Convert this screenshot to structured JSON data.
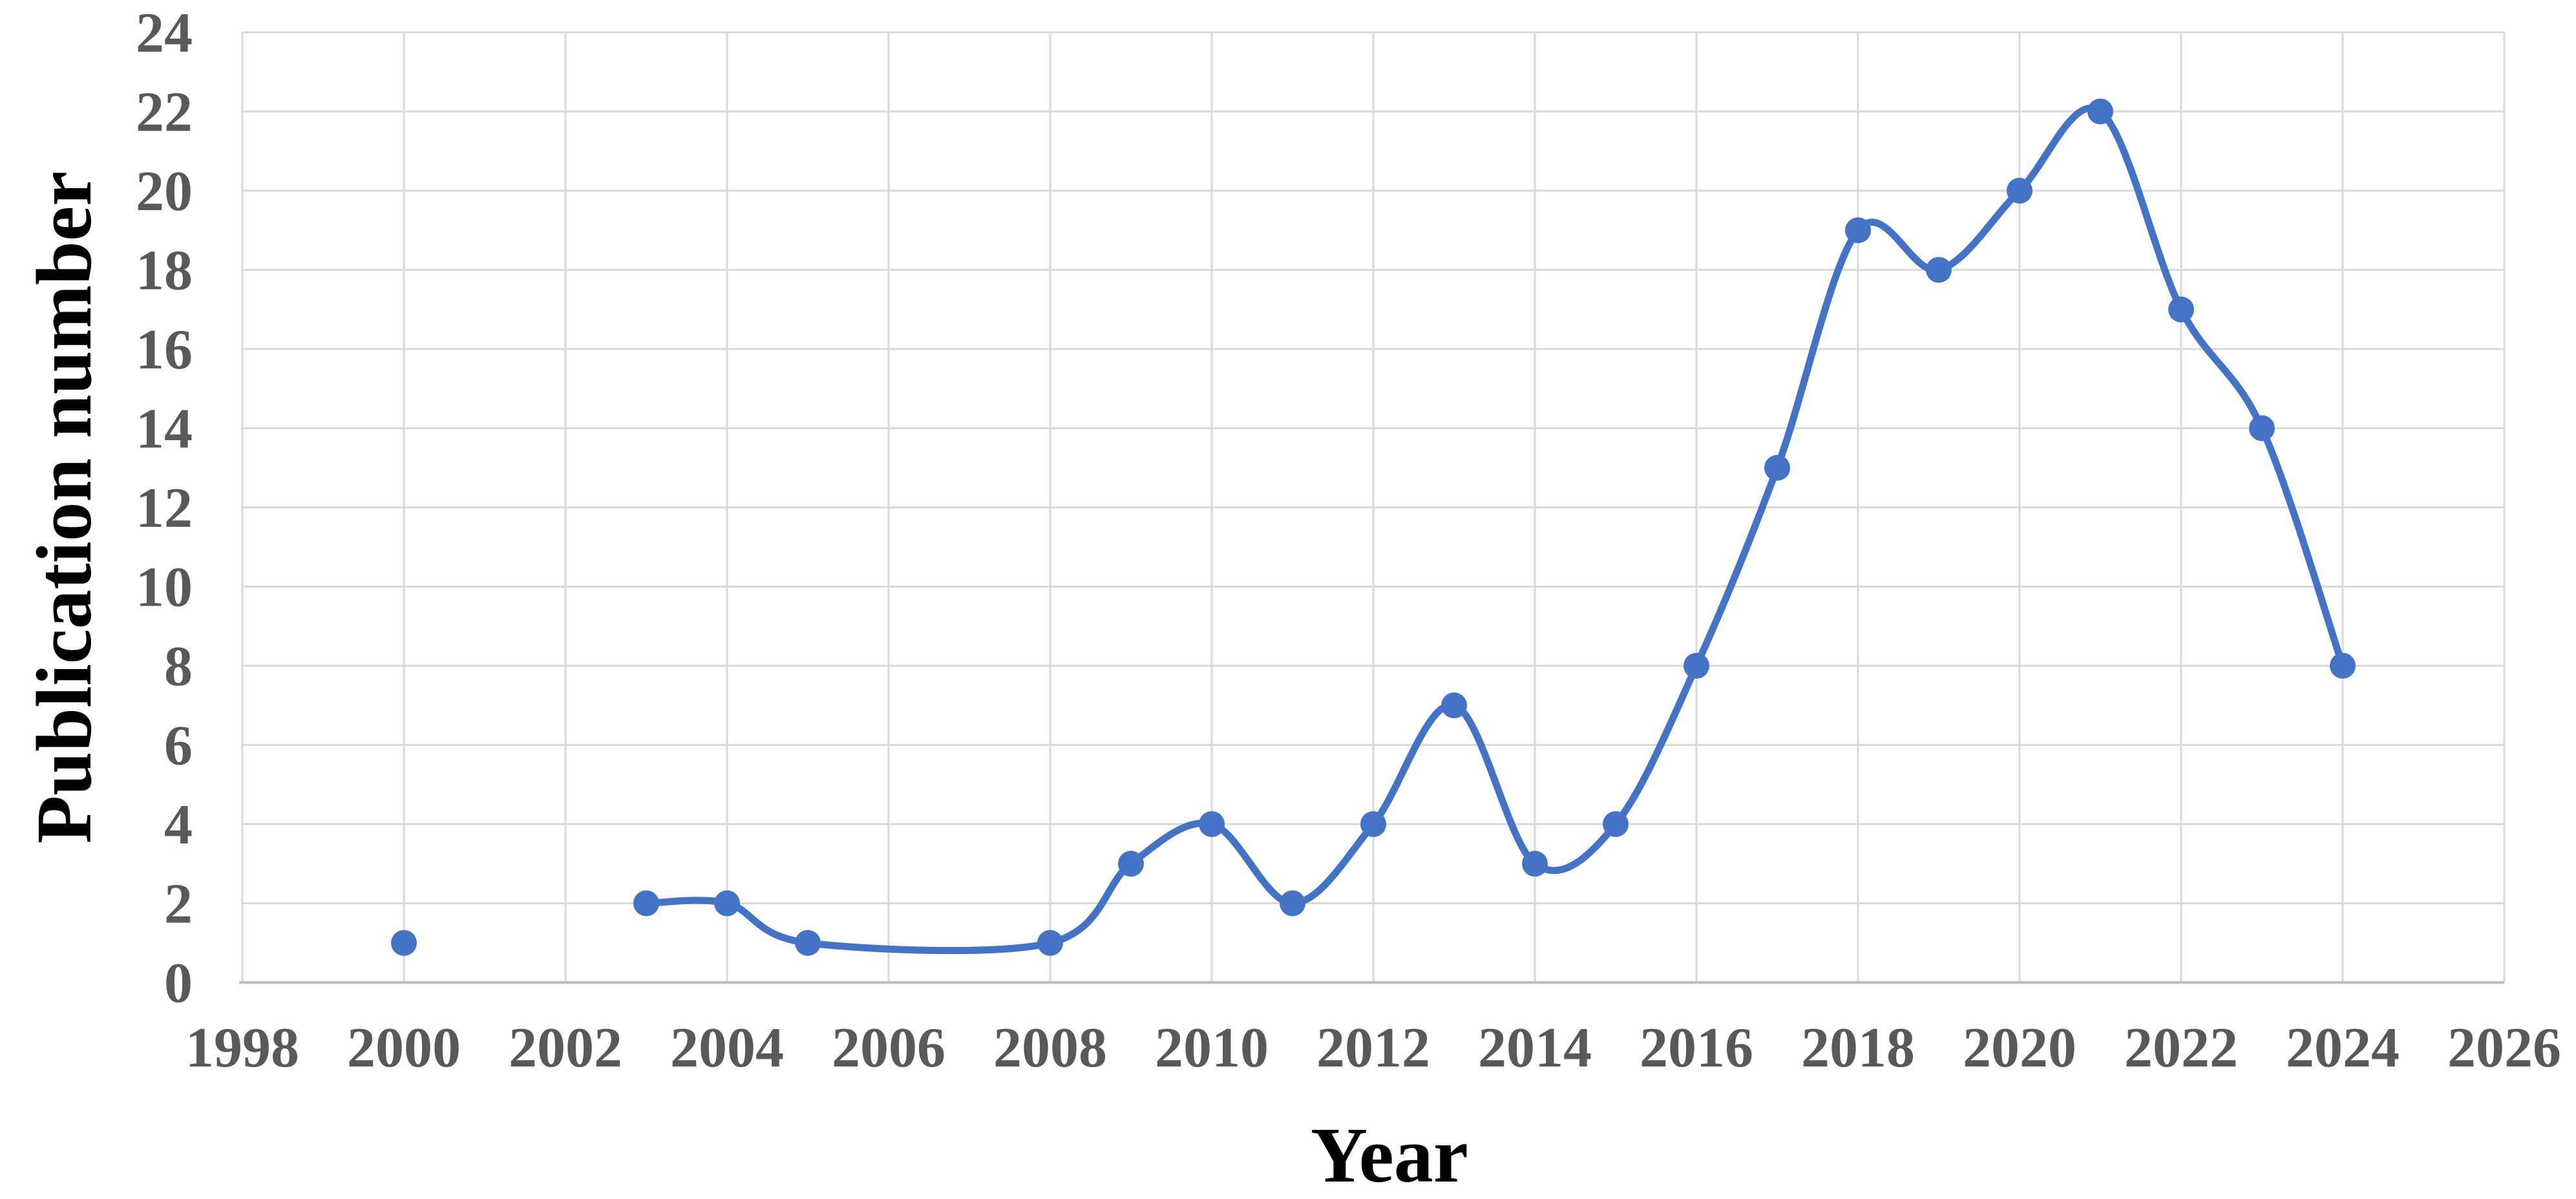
{
  "chart_data": {
    "type": "line",
    "title": "",
    "xlabel": "Year",
    "ylabel": "Publication number",
    "xlim": [
      1998,
      2026
    ],
    "ylim": [
      0,
      24
    ],
    "x_ticks": [
      1998,
      2000,
      2002,
      2004,
      2006,
      2008,
      2010,
      2012,
      2014,
      2016,
      2018,
      2020,
      2022,
      2024,
      2026
    ],
    "y_ticks": [
      0,
      2,
      4,
      6,
      8,
      10,
      12,
      14,
      16,
      18,
      20,
      22,
      24
    ],
    "grid": true,
    "legend_position": "none",
    "line_style": "smooth",
    "series": [
      {
        "name": "Publication number",
        "color": "#4472C4",
        "marker": "circle",
        "points": [
          {
            "x": 2000,
            "y": 1,
            "isolated": true
          },
          {
            "x": 2003,
            "y": 2
          },
          {
            "x": 2004,
            "y": 2
          },
          {
            "x": 2005,
            "y": 1
          },
          {
            "x": 2008,
            "y": 1
          },
          {
            "x": 2009,
            "y": 3
          },
          {
            "x": 2010,
            "y": 4
          },
          {
            "x": 2011,
            "y": 2
          },
          {
            "x": 2012,
            "y": 4
          },
          {
            "x": 2013,
            "y": 7
          },
          {
            "x": 2014,
            "y": 3
          },
          {
            "x": 2015,
            "y": 4
          },
          {
            "x": 2016,
            "y": 8
          },
          {
            "x": 2017,
            "y": 13
          },
          {
            "x": 2018,
            "y": 19
          },
          {
            "x": 2019,
            "y": 18
          },
          {
            "x": 2020,
            "y": 20
          },
          {
            "x": 2021,
            "y": 22
          },
          {
            "x": 2022,
            "y": 17
          },
          {
            "x": 2023,
            "y": 14
          },
          {
            "x": 2024,
            "y": 8
          }
        ]
      }
    ],
    "colors": {
      "line": "#4472C4",
      "marker": "#4472C4",
      "gridline": "#D9D9D9",
      "axis_line": "#BFBFBF",
      "tick_label": "#595959",
      "axis_title": "#000000",
      "background": "#FFFFFF"
    }
  }
}
